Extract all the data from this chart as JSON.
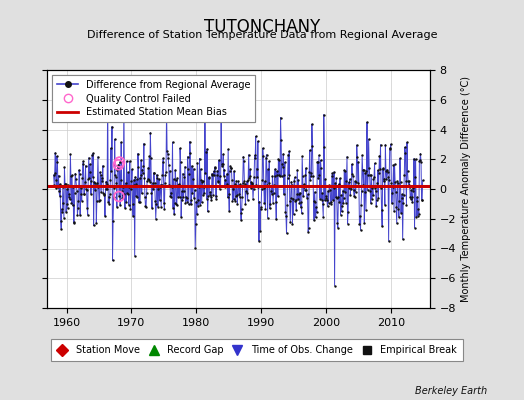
{
  "title": "TUTONCHANY",
  "subtitle": "Difference of Station Temperature Data from Regional Average",
  "ylabel": "Monthly Temperature Anomaly Difference (°C)",
  "xlim": [
    1957,
    2016
  ],
  "ylim": [
    -8,
    8
  ],
  "yticks": [
    -8,
    -6,
    -4,
    -2,
    0,
    2,
    4,
    6,
    8
  ],
  "xticks": [
    1960,
    1970,
    1980,
    1990,
    2000,
    2010
  ],
  "bias": 0.2,
  "bg_color": "#e0e0e0",
  "plot_bg_color": "#ffffff",
  "line_color": "#4444cc",
  "dot_color": "#111111",
  "bias_color": "#cc0000",
  "qc_color": "#ff66cc",
  "watermark": "Berkeley Earth",
  "seed": 42,
  "n_years": 57,
  "start_year": 1958,
  "title_fontsize": 12,
  "subtitle_fontsize": 8,
  "legend_fontsize": 7,
  "tick_fontsize": 8,
  "ylabel_fontsize": 7
}
